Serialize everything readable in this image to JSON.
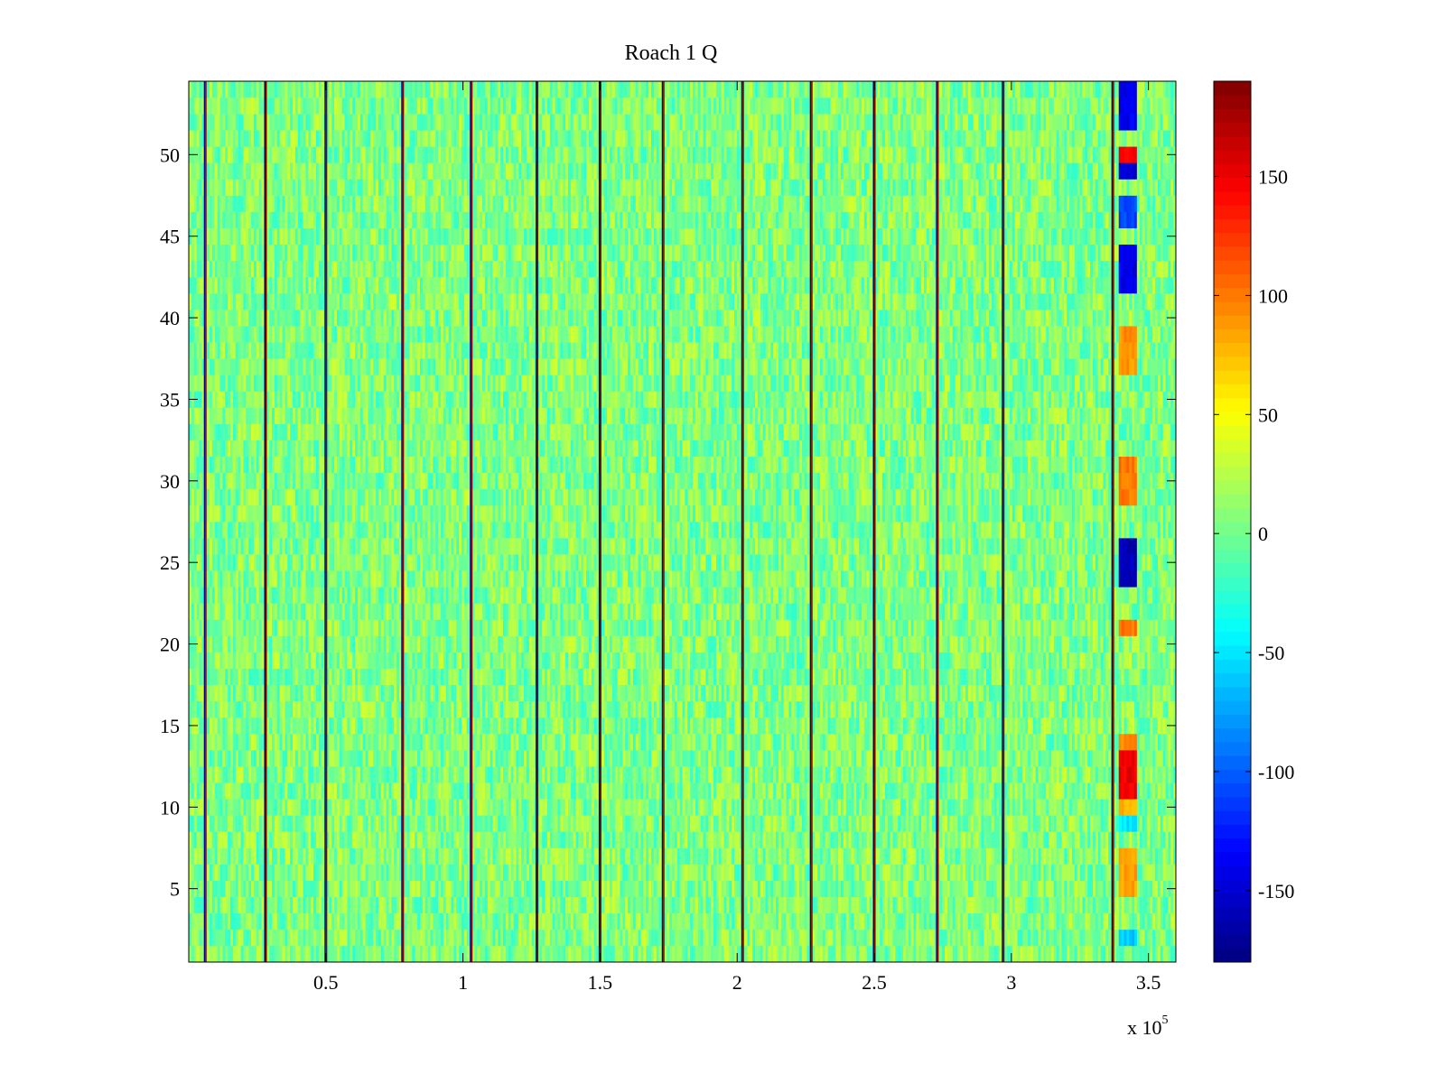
{
  "chart_data": {
    "type": "heatmap",
    "title": "Roach 1 Q",
    "xlabel": "",
    "ylabel": "",
    "x_multiplier_label": "x 10",
    "x_multiplier_exponent": "5",
    "xlim": [
      0,
      3.6
    ],
    "ylim": [
      0.5,
      54.5
    ],
    "rows": 54,
    "x_ticks": [
      {
        "value": 0.5,
        "label": "0.5"
      },
      {
        "value": 1,
        "label": "1"
      },
      {
        "value": 1.5,
        "label": "1.5"
      },
      {
        "value": 2,
        "label": "2"
      },
      {
        "value": 2.5,
        "label": "2.5"
      },
      {
        "value": 3,
        "label": "3"
      },
      {
        "value": 3.5,
        "label": "3.5"
      }
    ],
    "y_ticks": [
      {
        "value": 5,
        "label": "5"
      },
      {
        "value": 10,
        "label": "10"
      },
      {
        "value": 15,
        "label": "15"
      },
      {
        "value": 20,
        "label": "20"
      },
      {
        "value": 25,
        "label": "25"
      },
      {
        "value": 30,
        "label": "30"
      },
      {
        "value": 35,
        "label": "35"
      },
      {
        "value": 40,
        "label": "40"
      },
      {
        "value": 45,
        "label": "45"
      },
      {
        "value": 50,
        "label": "50"
      }
    ],
    "colorbar": {
      "colormap": "jet",
      "range": [
        -180,
        190
      ],
      "ticks": [
        {
          "value": 150,
          "label": "150"
        },
        {
          "value": 100,
          "label": "100"
        },
        {
          "value": 50,
          "label": "50"
        },
        {
          "value": 0,
          "label": "0"
        },
        {
          "value": -50,
          "label": "-50"
        },
        {
          "value": -100,
          "label": "-100"
        },
        {
          "value": -150,
          "label": "-150"
        }
      ]
    },
    "background_noise": {
      "mean": 5,
      "spread": 30
    },
    "vertical_stripes_x": [
      0.06,
      0.28,
      0.5,
      0.78,
      1.03,
      1.27,
      1.5,
      1.73,
      2.02,
      2.27,
      2.5,
      2.73,
      2.97,
      3.37
    ],
    "anomaly_column_x_range": [
      3.39,
      3.46
    ],
    "anomalies": [
      {
        "rows": [
          52,
          53,
          54
        ],
        "value": -140
      },
      {
        "row": 50,
        "value": 150
      },
      {
        "row": 49,
        "value": -150
      },
      {
        "rows": [
          46,
          47
        ],
        "value": -110
      },
      {
        "rows": [
          42,
          43,
          44
        ],
        "value": -140
      },
      {
        "rows": [
          37,
          38,
          39
        ],
        "value": 90
      },
      {
        "rows": [
          29,
          30,
          31
        ],
        "value": 100
      },
      {
        "rows": [
          24,
          25,
          26
        ],
        "value": -160
      },
      {
        "row": 21,
        "value": 100
      },
      {
        "rows": [
          11,
          12,
          13
        ],
        "value": 150
      },
      {
        "row": 14,
        "value": 90
      },
      {
        "row": 10,
        "value": 80
      },
      {
        "row": 9,
        "value": -50
      },
      {
        "rows": [
          5,
          6,
          7
        ],
        "value": 85
      },
      {
        "row": 2,
        "value": -60
      }
    ]
  }
}
